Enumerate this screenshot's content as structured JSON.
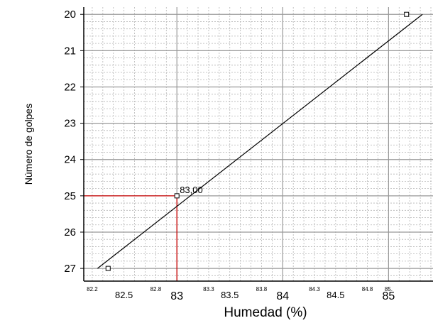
{
  "chart_data": {
    "type": "scatter",
    "xlabel": "Humedad (%)",
    "ylabel": "Número de golpes",
    "xlim": [
      82.12,
      85.42
    ],
    "ylim": [
      27.35,
      19.8
    ],
    "y_inverted": true,
    "grid": true,
    "y_ticks": [
      "20",
      "21",
      "22",
      "23",
      "24",
      "25",
      "26",
      "27"
    ],
    "x_ticks_major": [
      "83",
      "84",
      "85"
    ],
    "x_ticks_mid": [
      "82.5",
      "83.5",
      "84.5"
    ],
    "x_ticks_small": [
      "82.2",
      "82.8",
      "83.3",
      "83.8",
      "84.3",
      "84.8",
      "85."
    ],
    "points": [
      {
        "x": 82.35,
        "y": 27
      },
      {
        "x": 83.0,
        "y": 25
      },
      {
        "x": 85.17,
        "y": 20
      }
    ],
    "fit_line": {
      "x1": 82.25,
      "y1": 27.0,
      "x2": 85.32,
      "y2": 20.0
    },
    "annotation": {
      "text": "83,00",
      "x": 83.0,
      "y": 25
    },
    "reference": {
      "x": 83.0,
      "y": 25,
      "color": "#cc0000"
    }
  }
}
